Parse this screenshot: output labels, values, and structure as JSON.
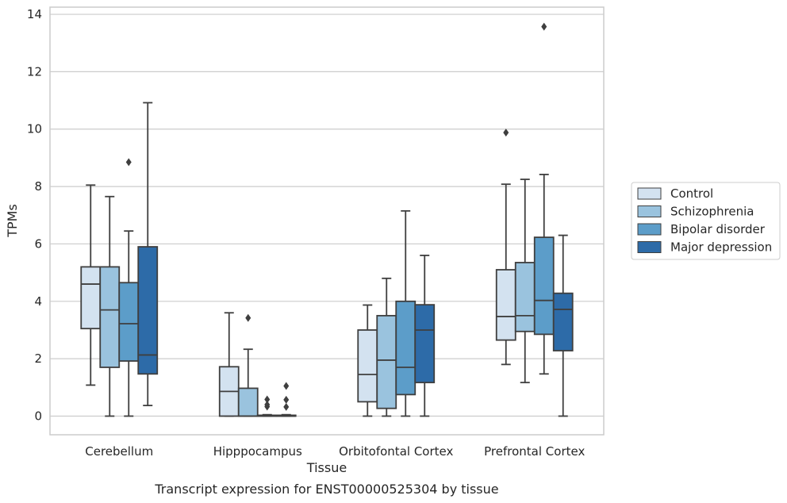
{
  "chart_data": {
    "type": "box",
    "xlabel": "Tissue",
    "ylabel": "TPMs",
    "caption": "Transcript expression for ENST00000525304 by tissue",
    "categories": [
      "Cerebellum",
      "Hipppocampus",
      "Orbitofontal Cortex",
      "Prefrontal Cortex"
    ],
    "ylim": [
      -0.65,
      14.25
    ],
    "yticks": [
      0,
      2,
      4,
      6,
      8,
      10,
      12,
      14
    ],
    "grid": true,
    "legend_position": "right",
    "series": [
      {
        "name": "Control",
        "color": "#d3e2f0",
        "boxes": [
          {
            "whislo": 1.08,
            "q1": 3.05,
            "med": 4.6,
            "q3": 5.2,
            "whishi": 8.05,
            "fliers": []
          },
          {
            "whislo": 0.0,
            "q1": 0.0,
            "med": 0.86,
            "q3": 1.72,
            "whishi": 3.6,
            "fliers": []
          },
          {
            "whislo": 0.0,
            "q1": 0.5,
            "med": 1.45,
            "q3": 3.0,
            "whishi": 3.87,
            "fliers": []
          },
          {
            "whislo": 1.8,
            "q1": 2.65,
            "med": 3.47,
            "q3": 5.1,
            "whishi": 8.08,
            "fliers": [
              9.88
            ]
          }
        ]
      },
      {
        "name": "Schizophrenia",
        "color": "#9ac3de",
        "boxes": [
          {
            "whislo": 0.0,
            "q1": 1.7,
            "med": 3.7,
            "q3": 5.2,
            "whishi": 7.65,
            "fliers": []
          },
          {
            "whislo": 0.0,
            "q1": 0.0,
            "med": 0.0,
            "q3": 0.97,
            "whishi": 2.33,
            "fliers": [
              3.42
            ]
          },
          {
            "whislo": 0.0,
            "q1": 0.27,
            "med": 1.95,
            "q3": 3.5,
            "whishi": 4.8,
            "fliers": []
          },
          {
            "whislo": 1.17,
            "q1": 2.95,
            "med": 3.5,
            "q3": 5.35,
            "whishi": 8.25,
            "fliers": []
          }
        ]
      },
      {
        "name": "Bipolar disorder",
        "color": "#5c9dc9",
        "boxes": [
          {
            "whislo": 0.0,
            "q1": 1.92,
            "med": 3.22,
            "q3": 4.65,
            "whishi": 6.45,
            "fliers": [
              8.85
            ]
          },
          {
            "whislo": 0.0,
            "q1": 0.0,
            "med": 0.0,
            "q3": 0.03,
            "whishi": 0.05,
            "fliers": [
              0.33,
              0.4,
              0.58
            ]
          },
          {
            "whislo": 0.0,
            "q1": 0.75,
            "med": 1.7,
            "q3": 4.0,
            "whishi": 7.15,
            "fliers": []
          },
          {
            "whislo": 1.47,
            "q1": 2.85,
            "med": 4.03,
            "q3": 6.23,
            "whishi": 8.42,
            "fliers": [
              13.57
            ]
          }
        ]
      },
      {
        "name": "Major depression",
        "color": "#2d6ba8",
        "boxes": [
          {
            "whislo": 0.37,
            "q1": 1.47,
            "med": 2.13,
            "q3": 5.9,
            "whishi": 10.92,
            "fliers": []
          },
          {
            "whislo": 0.0,
            "q1": 0.0,
            "med": 0.0,
            "q3": 0.03,
            "whishi": 0.05,
            "fliers": [
              0.32,
              0.57,
              1.05
            ]
          },
          {
            "whislo": 0.0,
            "q1": 1.17,
            "med": 3.0,
            "q3": 3.88,
            "whishi": 5.6,
            "fliers": []
          },
          {
            "whislo": 0.0,
            "q1": 2.28,
            "med": 3.72,
            "q3": 4.28,
            "whishi": 6.3,
            "fliers": []
          }
        ]
      }
    ]
  }
}
